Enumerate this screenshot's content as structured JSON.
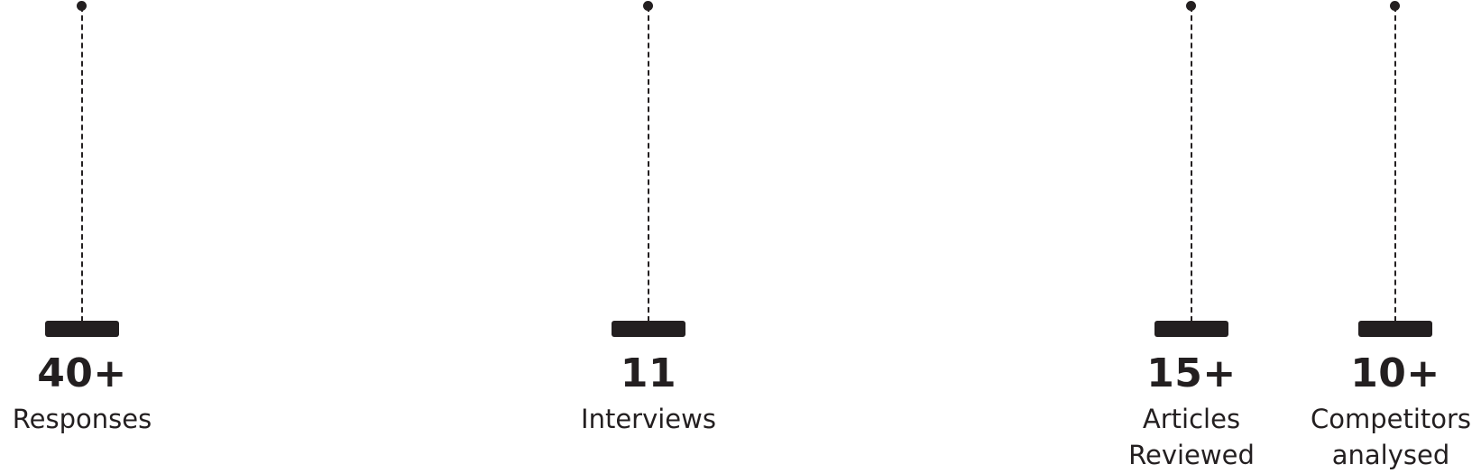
{
  "stats": [
    {
      "value": "40+",
      "label_lines": [
        "Responses"
      ]
    },
    {
      "value": "11",
      "label_lines": [
        "Interviews"
      ]
    },
    {
      "value": "15+",
      "label_lines": [
        "Articles",
        "Reviewed"
      ]
    },
    {
      "value": "10+",
      "label_lines": [
        "Competitors",
        "analysed"
      ]
    }
  ],
  "colors": {
    "ink": "#231f20",
    "background": "#ffffff"
  }
}
